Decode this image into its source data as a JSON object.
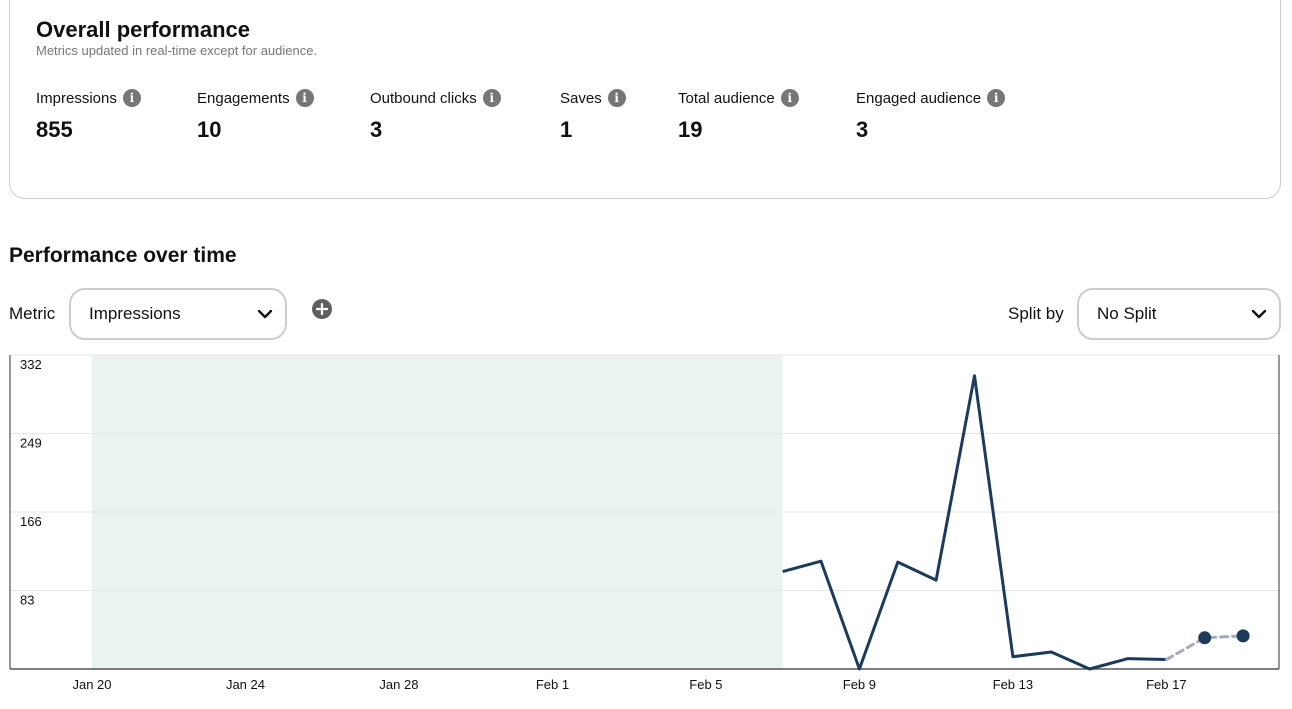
{
  "overall": {
    "title": "Overall performance",
    "subtitle": "Metrics updated in real-time except for audience.",
    "metrics": [
      {
        "label": "Impressions",
        "value": "855"
      },
      {
        "label": "Engagements",
        "value": "10"
      },
      {
        "label": "Outbound clicks",
        "value": "3"
      },
      {
        "label": "Saves",
        "value": "1"
      },
      {
        "label": "Total audience",
        "value": "19"
      },
      {
        "label": "Engaged audience",
        "value": "3"
      }
    ],
    "info_icon": "info-icon"
  },
  "performance": {
    "title": "Performance over time",
    "metric_label": "Metric",
    "metric_selected": "Impressions",
    "add_icon": "plus-circle-icon",
    "split_label": "Split by",
    "split_selected": "No Split"
  },
  "colors": {
    "line": "#1b3a5c",
    "highlight_band": "#e9f4ee",
    "estimated": "#a3adb8"
  },
  "chart_data": {
    "type": "line",
    "y_ticks": [
      83,
      166,
      249,
      332
    ],
    "ylim": [
      0,
      332
    ],
    "x_tick_labels": [
      "Jan 20",
      "Jan 24",
      "Jan 28",
      "Feb 1",
      "Feb 5",
      "Feb 9",
      "Feb 13",
      "Feb 17"
    ],
    "x_tick_day_index": [
      0,
      4,
      8,
      12,
      16,
      20,
      24,
      28
    ],
    "highlight_range_day_index": [
      0,
      18
    ],
    "series": [
      {
        "points": [
          [
            18,
            103
          ],
          [
            19,
            114
          ],
          [
            20,
            0
          ],
          [
            21,
            113
          ],
          [
            22,
            94
          ],
          [
            23,
            310
          ],
          [
            24,
            13
          ],
          [
            25,
            18
          ],
          [
            26,
            0
          ],
          [
            27,
            11
          ],
          [
            28,
            10
          ]
        ]
      }
    ],
    "estimated_points": [
      [
        28,
        10
      ],
      [
        29,
        33
      ],
      [
        30,
        35
      ]
    ],
    "grid": true
  }
}
